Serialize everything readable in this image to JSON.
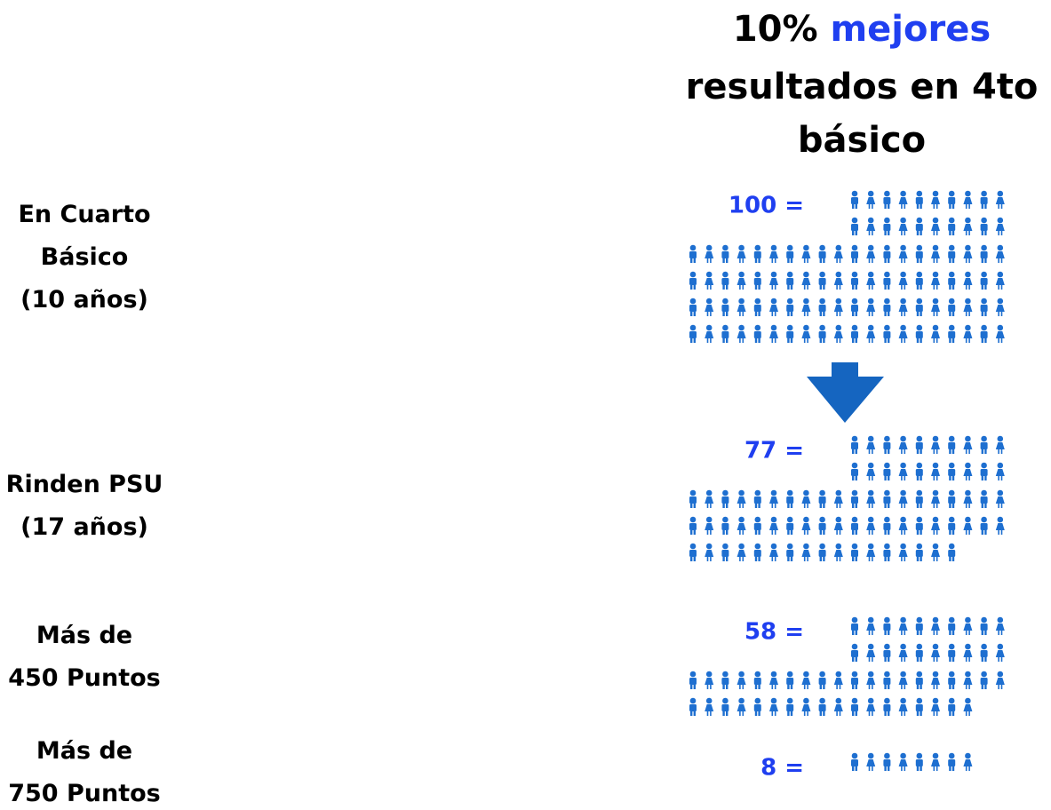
{
  "chart_data": {
    "type": "pictograph",
    "title": [
      "10%",
      "mejores",
      "resultados en 4to",
      "básico"
    ],
    "categories": [
      "En Cuarto\nBásico\n(10 años)",
      "Rinden PSU\n(17 años)",
      "Más de\n450 Puntos",
      "Más de\n750 Puntos"
    ],
    "values": [
      100,
      77,
      58,
      8
    ],
    "value_labels": [
      "100 =",
      "77 =",
      "58 =",
      "8 ="
    ],
    "color": "#1e6fd0",
    "label_color": "#1f3ff0"
  }
}
